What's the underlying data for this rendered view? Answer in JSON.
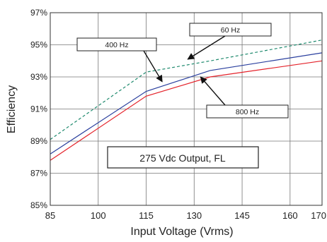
{
  "chart_data": {
    "type": "line",
    "xlabel": "Input Voltage (Vrms)",
    "ylabel": "Efficiency",
    "xlim": [
      85,
      170
    ],
    "ylim": [
      85,
      97
    ],
    "x_ticks": [
      85,
      100,
      115,
      130,
      145,
      160,
      170
    ],
    "y_ticks": [
      85,
      87,
      89,
      91,
      93,
      95,
      97
    ],
    "y_tick_labels": [
      "85%",
      "87%",
      "89%",
      "91%",
      "93%",
      "95%",
      "97%"
    ],
    "grid": true,
    "series": [
      {
        "name": "400 Hz",
        "color": "#2a3f9e",
        "dash": "solid",
        "x": [
          85,
          115,
          135,
          170
        ],
        "y": [
          88.2,
          92.1,
          93.4,
          94.5
        ]
      },
      {
        "name": "60 Hz",
        "color": "#1f8a6e",
        "dash": "dashed",
        "x": [
          85,
          115,
          135,
          170
        ],
        "y": [
          89.1,
          93.3,
          94.0,
          95.3
        ]
      },
      {
        "name": "800 Hz",
        "color": "#e4222a",
        "dash": "solid",
        "x": [
          85,
          115,
          135,
          170
        ],
        "y": [
          87.8,
          91.8,
          93.0,
          94.0
        ]
      }
    ],
    "annotations": [
      {
        "label": "400 Hz",
        "point": [
          120,
          92.7
        ]
      },
      {
        "label": "60 Hz",
        "point": [
          128,
          94.1
        ]
      },
      {
        "label": "800 Hz",
        "point": [
          132,
          93.0
        ]
      }
    ],
    "caption": "275 Vdc Output, FL"
  }
}
